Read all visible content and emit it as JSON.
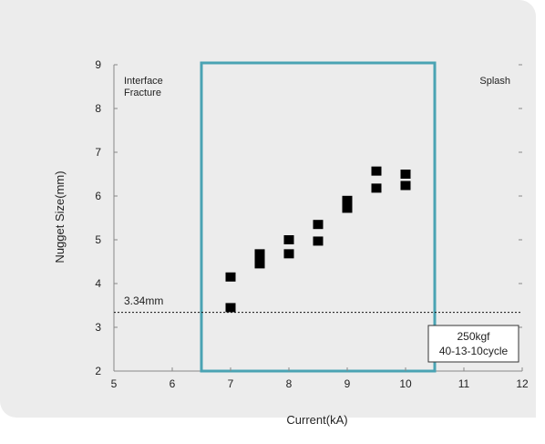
{
  "chart_data": {
    "type": "scatter",
    "xlabel": "Current(kA)",
    "ylabel": "Nugget Size(mm)",
    "xlim": [
      5,
      12
    ],
    "ylim": [
      2,
      9
    ],
    "xticks": [
      5,
      6,
      7,
      8,
      9,
      10,
      11,
      12
    ],
    "yticks": [
      2,
      3,
      4,
      5,
      6,
      7,
      8,
      9
    ],
    "grid": false,
    "series": [
      {
        "x": [
          7,
          7,
          7.5,
          7.5,
          7.5,
          8,
          8,
          8.5,
          8.5,
          9,
          9,
          9,
          9.5,
          9.5,
          10,
          10
        ],
        "y": [
          4.15,
          3.45,
          4.68,
          4.55,
          4.45,
          5.0,
          4.68,
          5.35,
          4.97,
          5.9,
          5.8,
          5.72,
          6.57,
          6.18,
          6.5,
          6.24
        ]
      }
    ],
    "region": {
      "x_start": 6.5,
      "x_end": 10.5,
      "color": "#4aa3b3"
    },
    "reference_line": {
      "y": 3.34,
      "label": "3.34mm"
    },
    "annotations": {
      "left_line1": "Interface",
      "left_line2": "Fracture",
      "right": "Splash",
      "box_line1": "250kgf",
      "box_line2": "40-13-10cycle"
    },
    "colors": {
      "marker": "#000000",
      "region": "#4aa3b3",
      "panel": "#ececec"
    }
  }
}
